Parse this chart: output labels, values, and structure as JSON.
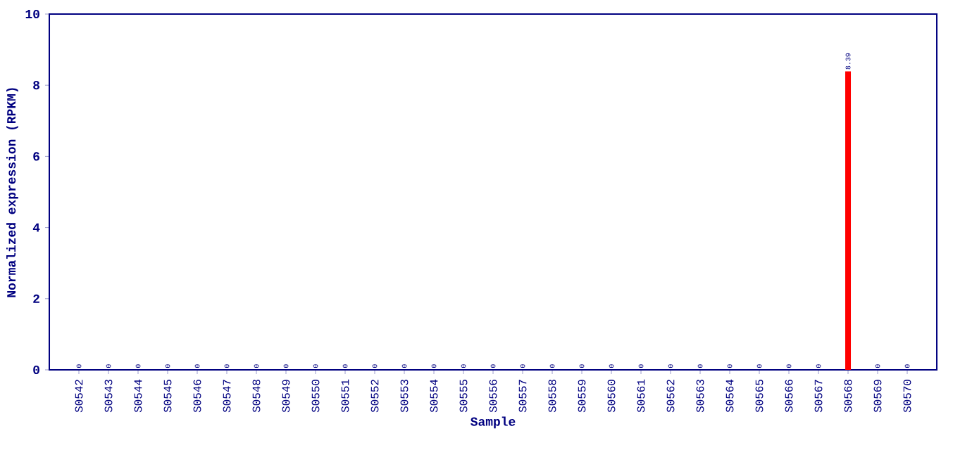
{
  "chart_data": {
    "type": "bar",
    "xlabel": "Sample",
    "ylabel": "Normalized expression (RPKM)",
    "categories": [
      "S0542",
      "S0543",
      "S0544",
      "S0545",
      "S0546",
      "S0547",
      "S0548",
      "S0549",
      "S0550",
      "S0551",
      "S0552",
      "S0553",
      "S0554",
      "S0555",
      "S0556",
      "S0557",
      "S0558",
      "S0559",
      "S0560",
      "S0561",
      "S0562",
      "S0563",
      "S0564",
      "S0565",
      "S0566",
      "S0567",
      "S0568",
      "S0569",
      "S0570"
    ],
    "values": [
      0,
      0,
      0,
      0,
      0,
      0,
      0,
      0,
      0,
      0,
      0,
      0,
      0,
      0,
      0,
      0,
      0,
      0,
      0,
      0,
      0,
      0,
      0,
      0,
      0,
      0,
      8.39,
      0,
      0
    ],
    "value_labels": [
      "0",
      "0",
      "0",
      "0",
      "0",
      "0",
      "0",
      "0",
      "0",
      "0",
      "0",
      "0",
      "0",
      "0",
      "0",
      "0",
      "0",
      "0",
      "0",
      "0",
      "0",
      "0",
      "0",
      "0",
      "0",
      "0",
      "8.39",
      "0",
      "0"
    ],
    "color": "#ff0000",
    "ylim": [
      0,
      10
    ],
    "yticks": [
      0,
      2,
      4,
      6,
      8,
      10
    ]
  }
}
